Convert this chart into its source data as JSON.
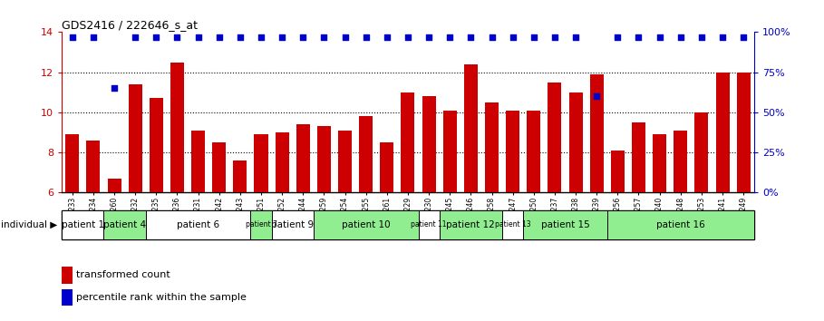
{
  "title": "GDS2416 / 222646_s_at",
  "samples": [
    "GSM135233",
    "GSM135234",
    "GSM135260",
    "GSM135232",
    "GSM135235",
    "GSM135236",
    "GSM135231",
    "GSM135242",
    "GSM135243",
    "GSM135251",
    "GSM135252",
    "GSM135244",
    "GSM135259",
    "GSM135254",
    "GSM135255",
    "GSM135261",
    "GSM135229",
    "GSM135230",
    "GSM135245",
    "GSM135246",
    "GSM135258",
    "GSM135247",
    "GSM135250",
    "GSM135237",
    "GSM135238",
    "GSM135239",
    "GSM135256",
    "GSM135257",
    "GSM135240",
    "GSM135248",
    "GSM135253",
    "GSM135241",
    "GSM135249"
  ],
  "bar_values": [
    8.9,
    8.6,
    6.7,
    11.4,
    10.7,
    12.5,
    9.1,
    8.5,
    7.6,
    8.9,
    9.0,
    9.4,
    9.3,
    9.1,
    9.8,
    8.5,
    11.0,
    10.8,
    10.1,
    12.4,
    10.5,
    10.1,
    10.1,
    11.5,
    11.0,
    11.9,
    8.1,
    9.5,
    8.9,
    9.1,
    10.0,
    12.0,
    12.0
  ],
  "percentile_values": [
    97,
    97,
    65,
    97,
    97,
    97,
    97,
    97,
    97,
    97,
    97,
    97,
    97,
    97,
    97,
    97,
    97,
    97,
    97,
    97,
    97,
    97,
    97,
    97,
    97,
    60,
    97,
    97,
    97,
    97,
    97,
    97,
    97
  ],
  "patients": [
    {
      "label": "patient 1",
      "start": 0,
      "end": 2,
      "color": "#ffffff"
    },
    {
      "label": "patient 4",
      "start": 2,
      "end": 4,
      "color": "#90ee90"
    },
    {
      "label": "patient 6",
      "start": 4,
      "end": 9,
      "color": "#ffffff"
    },
    {
      "label": "patient 7",
      "start": 9,
      "end": 10,
      "color": "#90ee90"
    },
    {
      "label": "patient 9",
      "start": 10,
      "end": 12,
      "color": "#ffffff"
    },
    {
      "label": "patient 10",
      "start": 12,
      "end": 17,
      "color": "#90ee90"
    },
    {
      "label": "patient 11",
      "start": 17,
      "end": 18,
      "color": "#ffffff"
    },
    {
      "label": "patient 12",
      "start": 18,
      "end": 21,
      "color": "#90ee90"
    },
    {
      "label": "patient 13",
      "start": 21,
      "end": 22,
      "color": "#ffffff"
    },
    {
      "label": "patient 15",
      "start": 22,
      "end": 26,
      "color": "#90ee90"
    },
    {
      "label": "patient 16",
      "start": 26,
      "end": 33,
      "color": "#90ee90"
    }
  ],
  "ylim": [
    6,
    14
  ],
  "yticks": [
    6,
    8,
    10,
    12,
    14
  ],
  "y2ticks": [
    0,
    25,
    50,
    75,
    100
  ],
  "y2tick_labels": [
    "0%",
    "25%",
    "50%",
    "75%",
    "100%"
  ],
  "bar_color": "#cc0000",
  "dot_color": "#0000cc",
  "left_axis_color": "#cc0000",
  "right_axis_color": "#0000cc"
}
